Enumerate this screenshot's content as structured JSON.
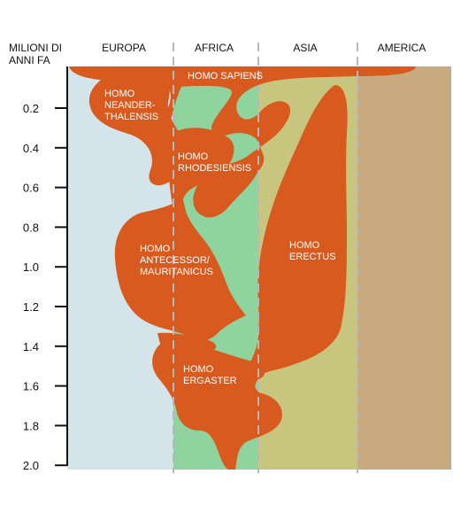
{
  "axis": {
    "title_line1": "MILIONI DI",
    "title_line2": "ANNI FA",
    "ticks": [
      "0.2",
      "0.4",
      "0.6",
      "0.8",
      "1.0",
      "1.2",
      "1.4",
      "1.6",
      "1.8",
      "2.0"
    ]
  },
  "regions": {
    "europa": "EUROPA",
    "africa": "AFRICA",
    "asia": "ASIA",
    "america": "AMERICA"
  },
  "species": {
    "sapiens": [
      "HOMO SAPIENS"
    ],
    "neanderthalensis": [
      "HOMO",
      "NEANDER-",
      "THALENSIS"
    ],
    "rhodesiensis": [
      "HOMO",
      "RHODESIENSIS"
    ],
    "antecessor": [
      "HOMO",
      "ANTECESSOR/",
      "MAURITANICUS"
    ],
    "erectus": [
      "HOMO",
      "ERECTUS"
    ],
    "ergaster": [
      "HOMO",
      "ERGASTER"
    ]
  },
  "colors": {
    "europa_bg": "#d3e4ea",
    "africa_bg": "#8fd39e",
    "asia_bg": "#c8c57e",
    "america_bg": "#c9a97f",
    "species_fill": "#d95a1f",
    "divider": "#b8b8b8",
    "text_dark": "#111111",
    "text_light": "#ffffff"
  }
}
